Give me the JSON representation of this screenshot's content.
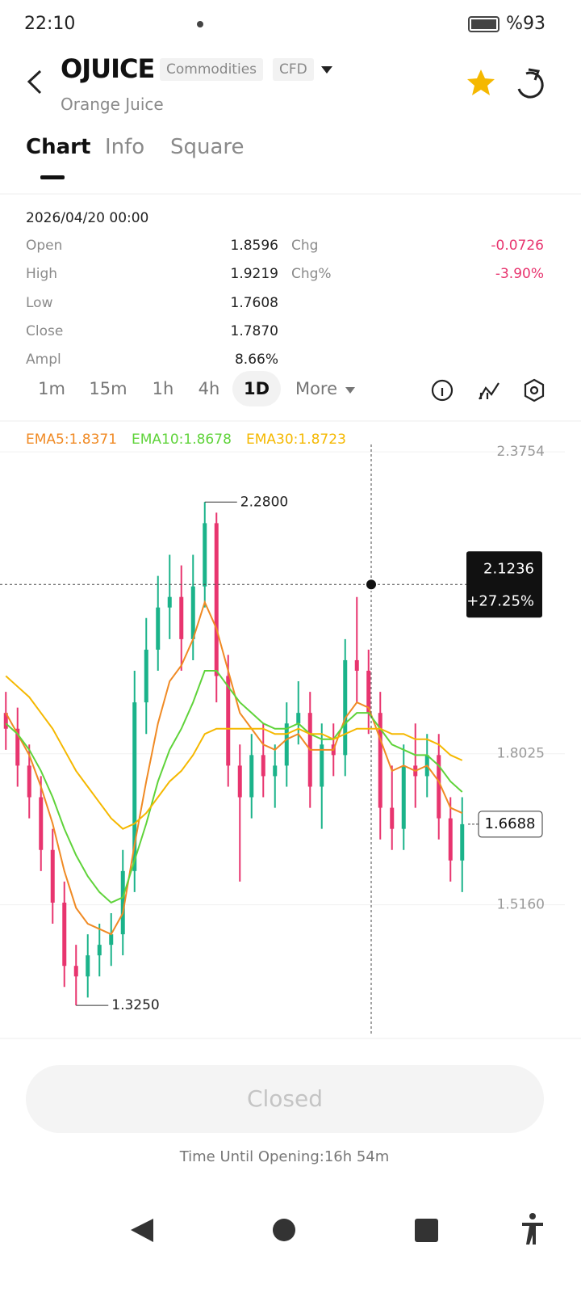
{
  "status_bar": {
    "time": "22:10",
    "battery": "%93"
  },
  "header": {
    "symbol": "OJUICE",
    "tags": [
      "Commodities",
      "CFD"
    ],
    "name": "Orange Juice"
  },
  "tabs": [
    "Chart",
    "Info",
    "Square"
  ],
  "quote": {
    "datetime": "2026/04/20 00:00",
    "left": [
      {
        "label": "Open",
        "value": "1.8596"
      },
      {
        "label": "High",
        "value": "1.9219"
      },
      {
        "label": "Low",
        "value": "1.7608"
      },
      {
        "label": "Close",
        "value": "1.7870"
      },
      {
        "label": "Ampl",
        "value": "8.66%"
      }
    ],
    "right": [
      {
        "label": "Chg",
        "value": "-0.0726"
      },
      {
        "label": "Chg%",
        "value": "-3.90%"
      }
    ]
  },
  "timeframes": [
    "1m",
    "15m",
    "1h",
    "4h",
    "1D",
    "More"
  ],
  "chart_data": {
    "type": "candlestick",
    "legend": [
      "EMA5:1.8371",
      "EMA10:1.8678",
      "EMA30:1.8723"
    ],
    "up_color": "#1bb38a",
    "down_color": "#e8356f",
    "open": [
      1.88,
      1.85,
      1.78,
      1.72,
      1.62,
      1.52,
      1.4,
      1.38,
      1.42,
      1.44,
      1.46,
      1.58,
      1.9,
      2.0,
      2.08,
      2.1,
      2.02,
      2.12,
      2.24,
      1.95,
      1.78,
      1.72,
      1.8,
      1.76,
      1.78,
      1.86,
      1.88,
      1.74,
      1.82,
      1.8,
      1.98,
      1.96,
      1.88,
      1.7,
      1.66,
      1.78,
      1.76,
      1.8,
      1.68,
      1.6
    ],
    "high": [
      1.92,
      1.89,
      1.82,
      1.76,
      1.66,
      1.56,
      1.44,
      1.46,
      1.48,
      1.5,
      1.62,
      1.96,
      2.06,
      2.14,
      2.18,
      2.16,
      2.18,
      2.28,
      2.26,
      1.99,
      1.82,
      1.84,
      1.86,
      1.82,
      1.9,
      1.94,
      1.92,
      1.86,
      1.86,
      2.02,
      2.1,
      2.0,
      1.92,
      1.78,
      1.82,
      1.86,
      1.84,
      1.84,
      1.72,
      1.72
    ],
    "low": [
      1.81,
      1.74,
      1.68,
      1.58,
      1.48,
      1.36,
      1.325,
      1.34,
      1.38,
      1.4,
      1.42,
      1.54,
      1.84,
      1.96,
      2.02,
      1.96,
      1.98,
      2.08,
      1.9,
      1.74,
      1.56,
      1.68,
      1.72,
      1.7,
      1.74,
      1.82,
      1.7,
      1.66,
      1.76,
      1.76,
      1.9,
      1.84,
      1.64,
      1.62,
      1.62,
      1.7,
      1.72,
      1.64,
      1.56,
      1.54
    ],
    "close": [
      1.85,
      1.78,
      1.72,
      1.62,
      1.52,
      1.4,
      1.38,
      1.42,
      1.44,
      1.46,
      1.58,
      1.9,
      2.0,
      2.08,
      2.1,
      2.02,
      2.12,
      2.24,
      1.95,
      1.78,
      1.72,
      1.8,
      1.76,
      1.78,
      1.86,
      1.88,
      1.74,
      1.82,
      1.8,
      1.98,
      1.96,
      1.88,
      1.7,
      1.66,
      1.78,
      1.76,
      1.8,
      1.68,
      1.6,
      1.6688
    ],
    "series": [
      {
        "name": "EMA5",
        "color": "#f08a24",
        "values": [
          1.88,
          1.84,
          1.8,
          1.74,
          1.67,
          1.58,
          1.51,
          1.48,
          1.47,
          1.46,
          1.5,
          1.63,
          1.75,
          1.86,
          1.94,
          1.97,
          2.02,
          2.09,
          2.04,
          1.96,
          1.88,
          1.85,
          1.82,
          1.81,
          1.83,
          1.84,
          1.81,
          1.81,
          1.81,
          1.87,
          1.9,
          1.89,
          1.83,
          1.77,
          1.78,
          1.77,
          1.78,
          1.75,
          1.7,
          1.69
        ]
      },
      {
        "name": "EMA10",
        "color": "#5fd33a",
        "values": [
          1.86,
          1.84,
          1.81,
          1.77,
          1.72,
          1.66,
          1.61,
          1.57,
          1.54,
          1.52,
          1.53,
          1.6,
          1.67,
          1.75,
          1.81,
          1.85,
          1.9,
          1.96,
          1.96,
          1.93,
          1.9,
          1.88,
          1.86,
          1.85,
          1.85,
          1.86,
          1.84,
          1.83,
          1.83,
          1.86,
          1.88,
          1.88,
          1.85,
          1.82,
          1.81,
          1.8,
          1.8,
          1.78,
          1.75,
          1.73
        ]
      },
      {
        "name": "EMA30",
        "color": "#f5b800",
        "values": [
          1.95,
          1.93,
          1.91,
          1.88,
          1.85,
          1.81,
          1.77,
          1.74,
          1.71,
          1.68,
          1.66,
          1.67,
          1.69,
          1.72,
          1.75,
          1.77,
          1.8,
          1.84,
          1.85,
          1.85,
          1.85,
          1.85,
          1.85,
          1.84,
          1.84,
          1.85,
          1.84,
          1.84,
          1.83,
          1.84,
          1.85,
          1.85,
          1.85,
          1.84,
          1.84,
          1.83,
          1.83,
          1.82,
          1.8,
          1.79
        ]
      }
    ],
    "ylim": [
      1.27,
      2.42
    ],
    "yticks": [
      2.3754,
      1.8025,
      {
        "value": 1.516,
        "label": "1.5160"
      }
    ],
    "max_label": "2.2800",
    "min_label": "1.3250",
    "crosshair": {
      "value": 2.1236,
      "change": "+27.25%"
    },
    "last_price": 1.6688
  },
  "footer": {
    "button": "Closed",
    "note": "Time Until Opening:16h 54m"
  }
}
